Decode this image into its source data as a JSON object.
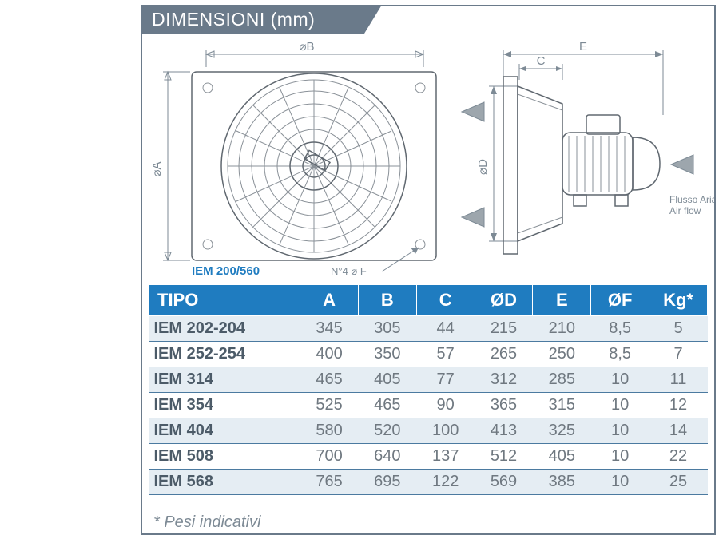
{
  "header": {
    "title": "DIMENSIONI (mm)"
  },
  "diagram": {
    "dimB": "⌀B",
    "dimA": "⌀A",
    "dimE": "E",
    "dimC": "C",
    "dimD": "⌀D",
    "model": "IEM 200/560",
    "holesNote": "N°4 ⌀ F",
    "flow1": "Flusso Aria",
    "flow2": "Air flow",
    "colors": {
      "line": "#7d8a95",
      "outline": "#606870",
      "accent": "#1f7cc0",
      "arrowFill": "#9da6ad"
    }
  },
  "table": {
    "columns": [
      "TIPO",
      "A",
      "B",
      "C",
      "ØD",
      "E",
      "ØF",
      "Kg*"
    ],
    "rows": [
      [
        "IEM 202-204",
        "345",
        "305",
        "44",
        "215",
        "210",
        "8,5",
        "5"
      ],
      [
        "IEM 252-254",
        "400",
        "350",
        "57",
        "265",
        "250",
        "8,5",
        "7"
      ],
      [
        "IEM 314",
        "465",
        "405",
        "77",
        "312",
        "285",
        "10",
        "11"
      ],
      [
        "IEM 354",
        "525",
        "465",
        "90",
        "365",
        "315",
        "10",
        "12"
      ],
      [
        "IEM 404",
        "580",
        "520",
        "100",
        "413",
        "325",
        "10",
        "14"
      ],
      [
        "IEM 508",
        "700",
        "640",
        "137",
        "512",
        "405",
        "10",
        "22"
      ],
      [
        "IEM 568",
        "765",
        "695",
        "122",
        "569",
        "385",
        "10",
        "25"
      ]
    ],
    "header_bg": "#1f7cc0",
    "row_alt_bg": "#e5edf3",
    "row_bg": "#ffffff",
    "border_color": "#4b7aa0"
  },
  "footnote": "* Pesi indicativi"
}
